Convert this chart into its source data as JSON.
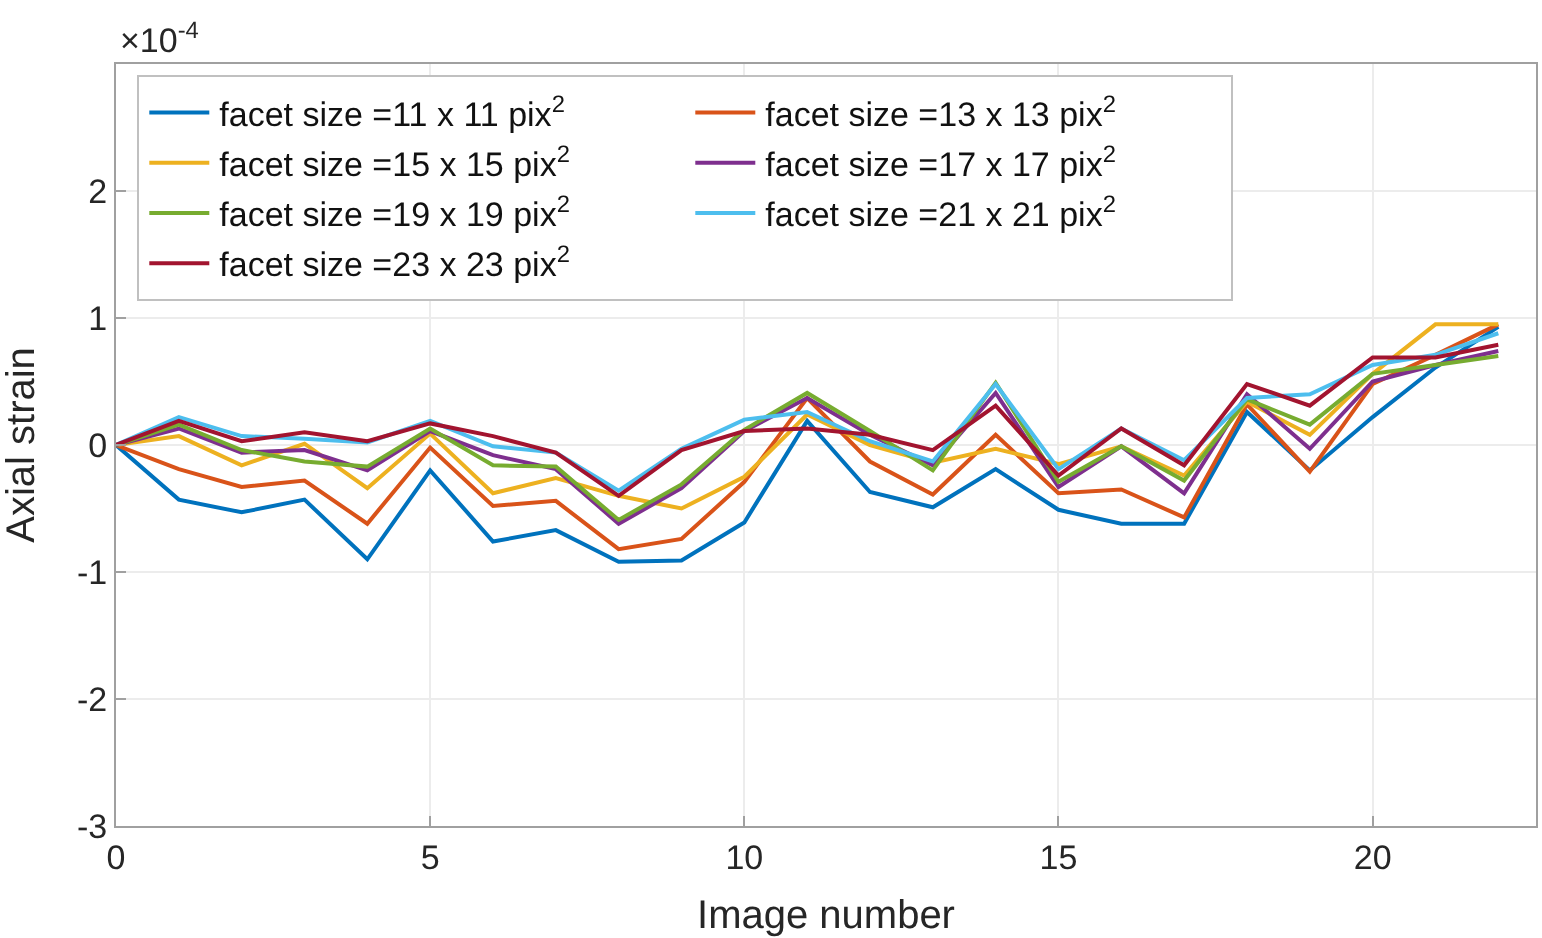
{
  "chart_data": {
    "type": "line",
    "xlabel": "Image number",
    "ylabel": "Axial strain",
    "annotations": [
      "×10$^{-4}$"
    ],
    "x": [
      0,
      1,
      2,
      3,
      4,
      5,
      6,
      7,
      8,
      9,
      10,
      11,
      12,
      13,
      14,
      15,
      16,
      17,
      18,
      19,
      20,
      21,
      22
    ],
    "xlim": [
      0,
      22.6
    ],
    "xticks": [
      0,
      5,
      10,
      15,
      20
    ],
    "ylim": [
      -3,
      3
    ],
    "yticks": [
      -3,
      -2,
      -1,
      0,
      1,
      2
    ],
    "grid": true,
    "legend": "top left",
    "line_style": "solid",
    "series": [
      {
        "name": "facet size =11 x 11 pix$^{2}$",
        "color": "#0072bd",
        "values": [
          0,
          -0.43,
          -0.53,
          -0.43,
          -0.9,
          -0.2,
          -0.76,
          -0.67,
          -0.92,
          -0.91,
          -0.61,
          0.19,
          -0.37,
          -0.49,
          -0.19,
          -0.51,
          -0.62,
          -0.62,
          0.26,
          -0.2,
          0.22,
          0.61,
          0.93
        ]
      },
      {
        "name": "facet size =13 x 13 pix$^{2}$",
        "color": "#d95319",
        "values": [
          0,
          -0.19,
          -0.33,
          -0.28,
          -0.62,
          -0.02,
          -0.48,
          -0.44,
          -0.82,
          -0.74,
          -0.29,
          0.37,
          -0.13,
          -0.39,
          0.08,
          -0.38,
          -0.35,
          -0.57,
          0.32,
          -0.21,
          0.48,
          0.71,
          0.95
        ]
      },
      {
        "name": "facet size =15 x 15 pix$^{2}$",
        "color": "#edb120",
        "values": [
          0,
          0.07,
          -0.16,
          0.01,
          -0.34,
          0.09,
          -0.38,
          -0.26,
          -0.4,
          -0.5,
          -0.25,
          0.24,
          0,
          -0.14,
          -0.03,
          -0.15,
          -0.01,
          -0.24,
          0.34,
          0.08,
          0.56,
          0.95,
          0.95
        ]
      },
      {
        "name": "facet size =17 x 17 pix$^{2}$",
        "color": "#7e2f8e",
        "values": [
          0,
          0.13,
          -0.06,
          -0.04,
          -0.2,
          0.11,
          -0.08,
          -0.19,
          -0.62,
          -0.34,
          0.11,
          0.37,
          0.08,
          -0.16,
          0.41,
          -0.33,
          -0.01,
          -0.38,
          0.4,
          -0.03,
          0.5,
          0.63,
          0.74
        ]
      },
      {
        "name": "facet size =19 x 19 pix$^{2}$",
        "color": "#77ac30",
        "values": [
          0,
          0.16,
          -0.04,
          -0.13,
          -0.17,
          0.13,
          -0.16,
          -0.17,
          -0.59,
          -0.31,
          0.12,
          0.41,
          0.11,
          -0.2,
          0.49,
          -0.29,
          -0.01,
          -0.28,
          0.36,
          0.16,
          0.56,
          0.63,
          0.7
        ]
      },
      {
        "name": "facet size =21 x 21 pix$^{2}$",
        "color": "#4dbeee",
        "values": [
          0,
          0.22,
          0.07,
          0.05,
          0.02,
          0.19,
          -0.01,
          -0.06,
          -0.36,
          -0.03,
          0.2,
          0.26,
          0.03,
          -0.13,
          0.48,
          -0.19,
          0.13,
          -0.12,
          0.37,
          0.4,
          0.63,
          0.71,
          0.88
        ]
      },
      {
        "name": "facet size =23 x 23 pix$^{2}$",
        "color": "#a2142f",
        "values": [
          0,
          0.19,
          0.03,
          0.1,
          0.03,
          0.17,
          0.07,
          -0.06,
          -0.4,
          -0.04,
          0.11,
          0.13,
          0.08,
          -0.04,
          0.31,
          -0.24,
          0.13,
          -0.16,
          0.48,
          0.31,
          0.69,
          0.69,
          0.79
        ]
      }
    ]
  }
}
